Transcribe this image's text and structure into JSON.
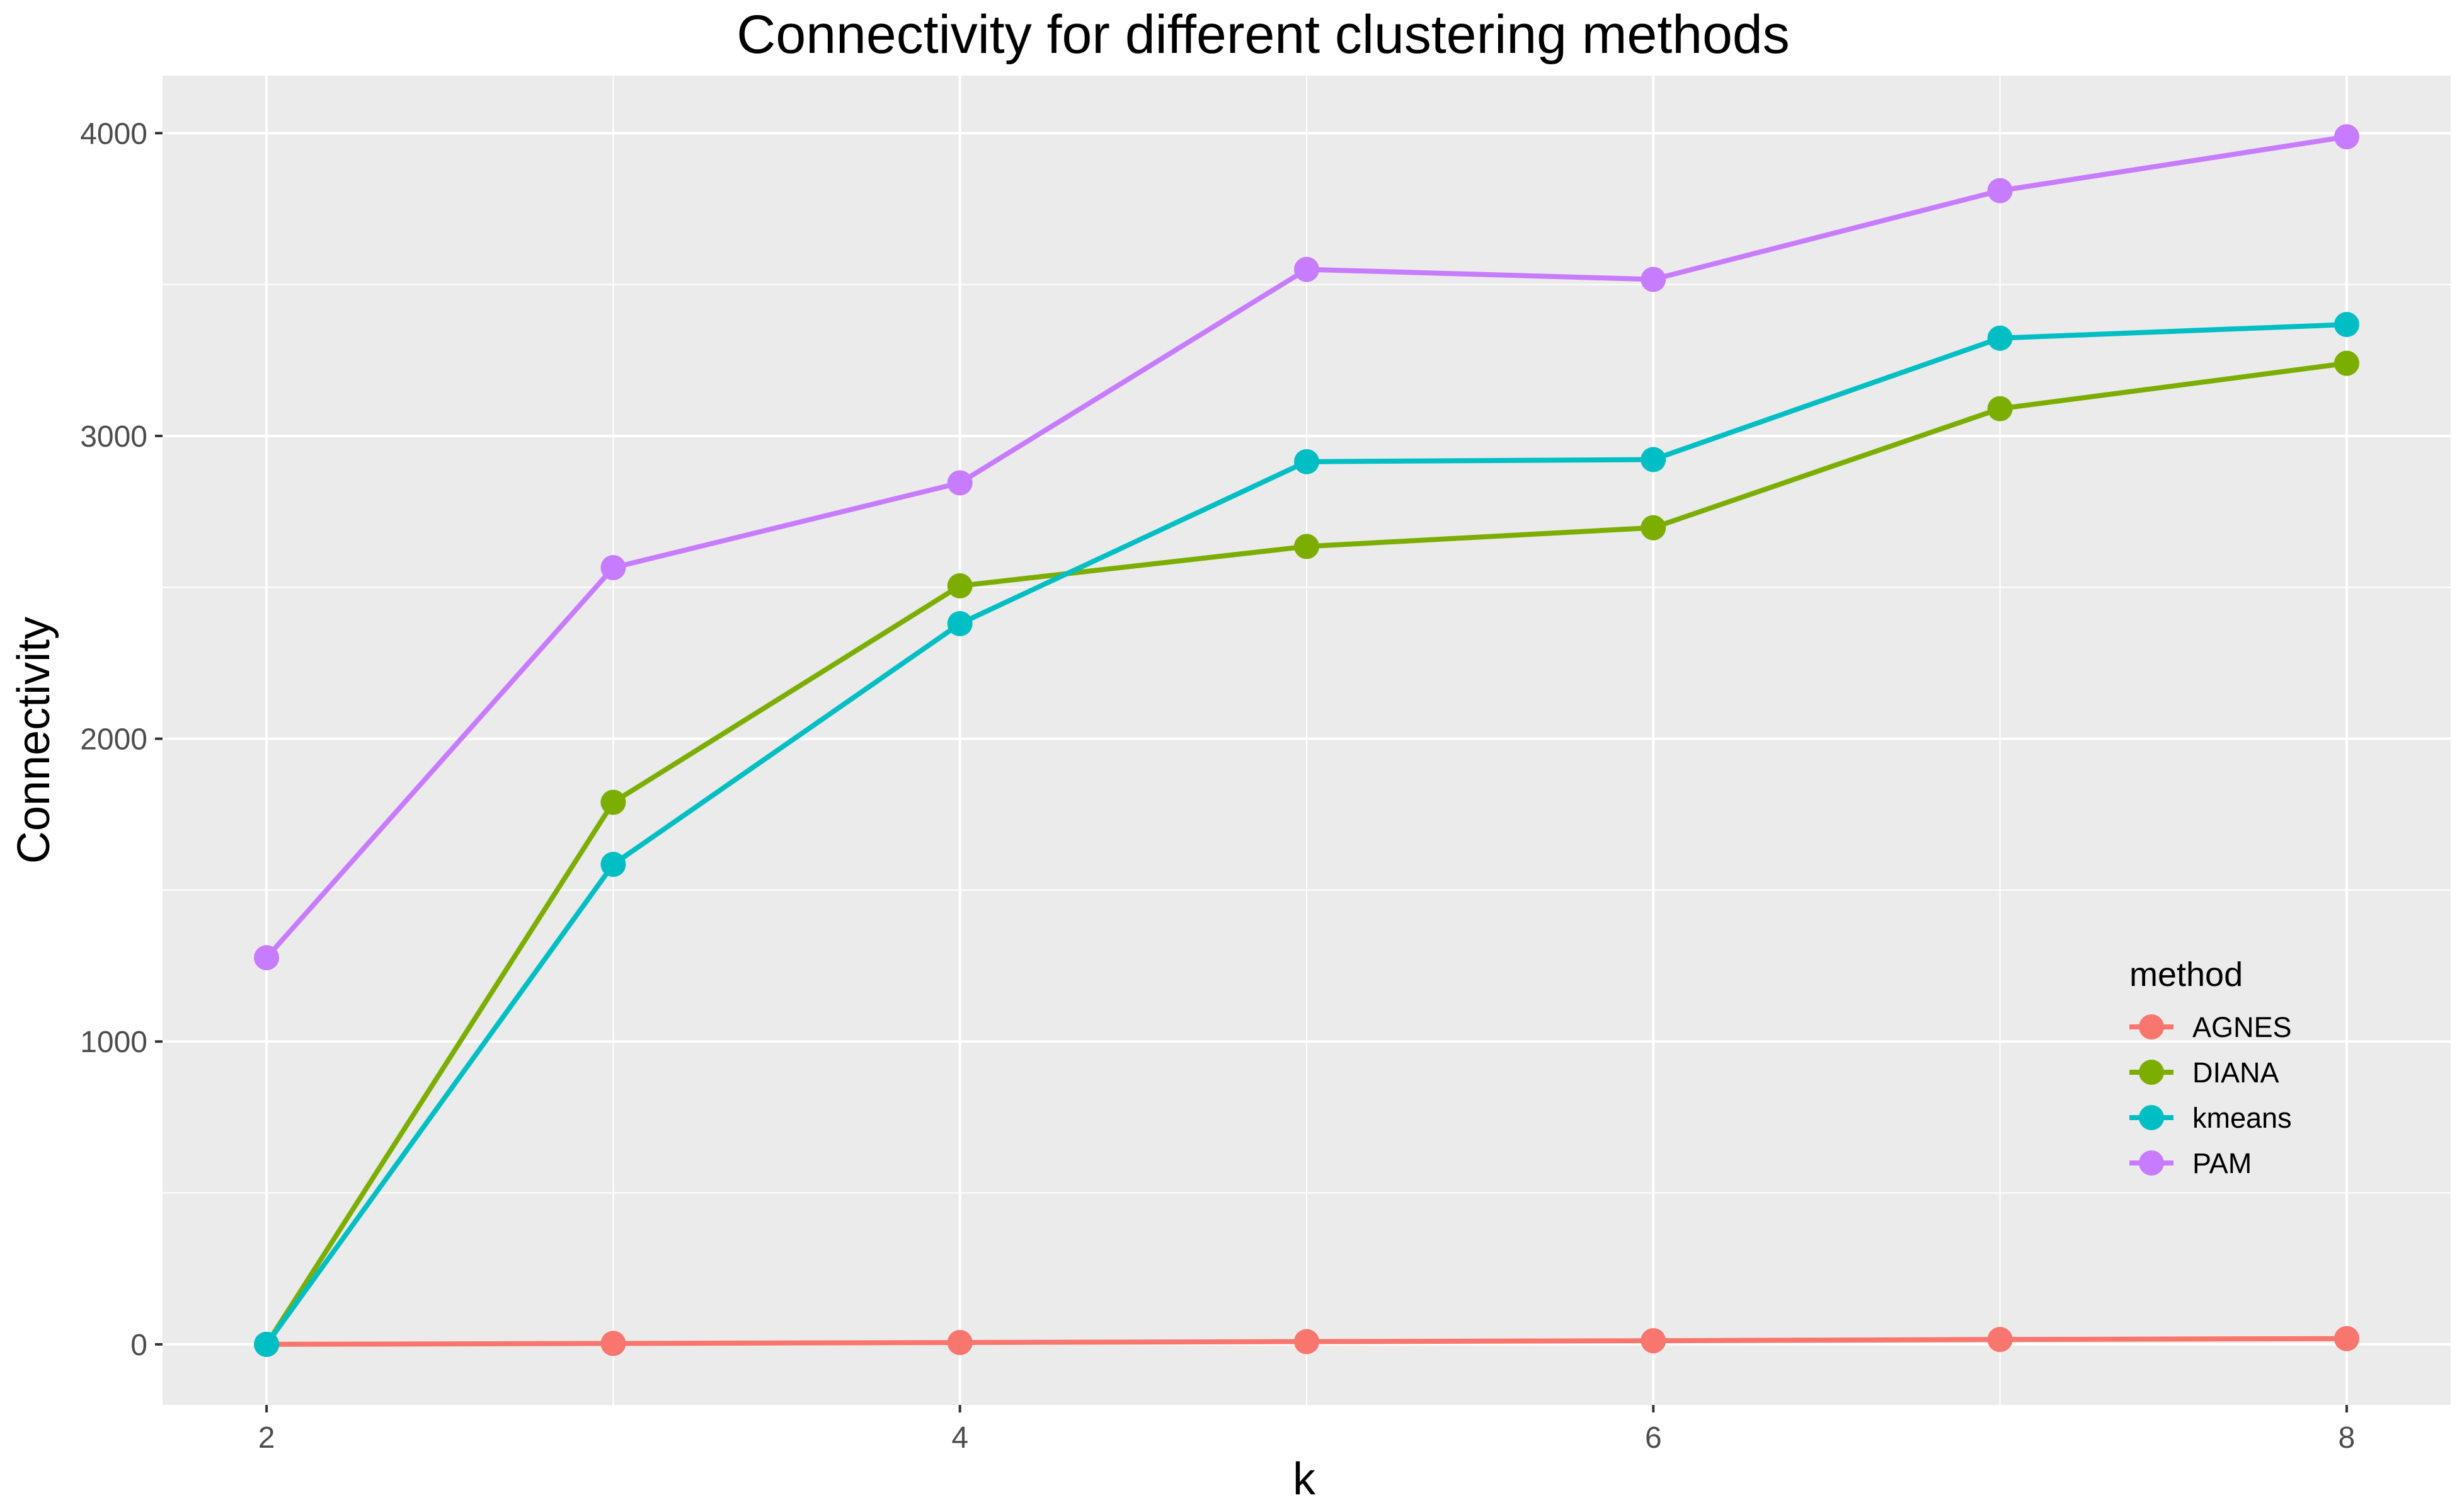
{
  "chart_data": {
    "type": "line",
    "title": "Connectivity for different clustering methods",
    "xlabel": "k",
    "ylabel": "Connectivity",
    "x": [
      2,
      3,
      4,
      5,
      6,
      7,
      8
    ],
    "xticks": [
      2,
      4,
      6,
      8
    ],
    "yticks": [
      0,
      1000,
      2000,
      3000,
      4000
    ],
    "xlim": [
      1.7,
      8.3
    ],
    "ylim": [
      -200,
      4190
    ],
    "grid": true,
    "legend_position": "bottom-right, inside plot",
    "legend_title": "method",
    "series": [
      {
        "name": "AGNES",
        "color": "#F8766D",
        "values": [
          0,
          3,
          6,
          9,
          12,
          16,
          19
        ]
      },
      {
        "name": "DIANA",
        "color": "#7CAE00",
        "values": [
          0,
          1790,
          2505,
          2635,
          2697,
          3090,
          3240
        ]
      },
      {
        "name": "kmeans",
        "color": "#00BFC4",
        "values": [
          0,
          1585,
          2380,
          2915,
          2922,
          3323,
          3368
        ]
      },
      {
        "name": "PAM",
        "color": "#C77CFF",
        "values": [
          1277,
          2565,
          2845,
          3550,
          3517,
          3810,
          3988
        ]
      }
    ]
  }
}
